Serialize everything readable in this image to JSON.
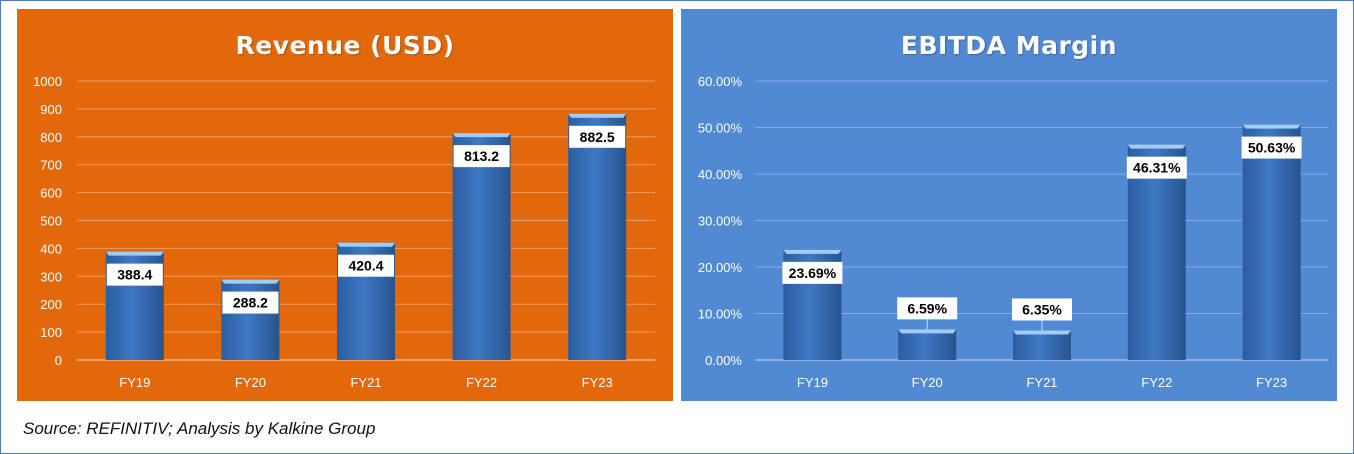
{
  "source_note": "Source: REFINITIV; Analysis by Kalkine Group",
  "colors": {
    "revenue_panel": "#e2680b",
    "ebitda_panel": "#5289d3",
    "bar": "#3f78c4",
    "bar_top": "#9fcdf5",
    "label_box": "#ffffff"
  },
  "chart_data": [
    {
      "type": "bar",
      "title": "Revenue (USD)",
      "categories": [
        "FY19",
        "FY20",
        "FY21",
        "FY22",
        "FY23"
      ],
      "values": [
        388.4,
        288.2,
        420.4,
        813.2,
        882.5
      ],
      "value_labels": [
        "388.4",
        "288.2",
        "420.4",
        "813.2",
        "882.5"
      ],
      "ylim": [
        0,
        1000
      ],
      "yticks": [
        "0",
        "100",
        "200",
        "300",
        "400",
        "500",
        "600",
        "700",
        "800",
        "900",
        "1000"
      ],
      "grid": true,
      "legend": "none"
    },
    {
      "type": "bar",
      "title": "EBITDA Margin",
      "categories": [
        "FY19",
        "FY20",
        "FY21",
        "FY22",
        "FY23"
      ],
      "values": [
        23.69,
        6.59,
        6.35,
        46.31,
        50.63
      ],
      "value_labels": [
        "23.69%",
        "6.59%",
        "6.35%",
        "46.31%",
        "50.63%"
      ],
      "ylim": [
        0,
        60
      ],
      "yticks": [
        "0.00%",
        "10.00%",
        "20.00%",
        "30.00%",
        "40.00%",
        "50.00%",
        "60.00%"
      ],
      "grid": true,
      "legend": "none"
    }
  ]
}
